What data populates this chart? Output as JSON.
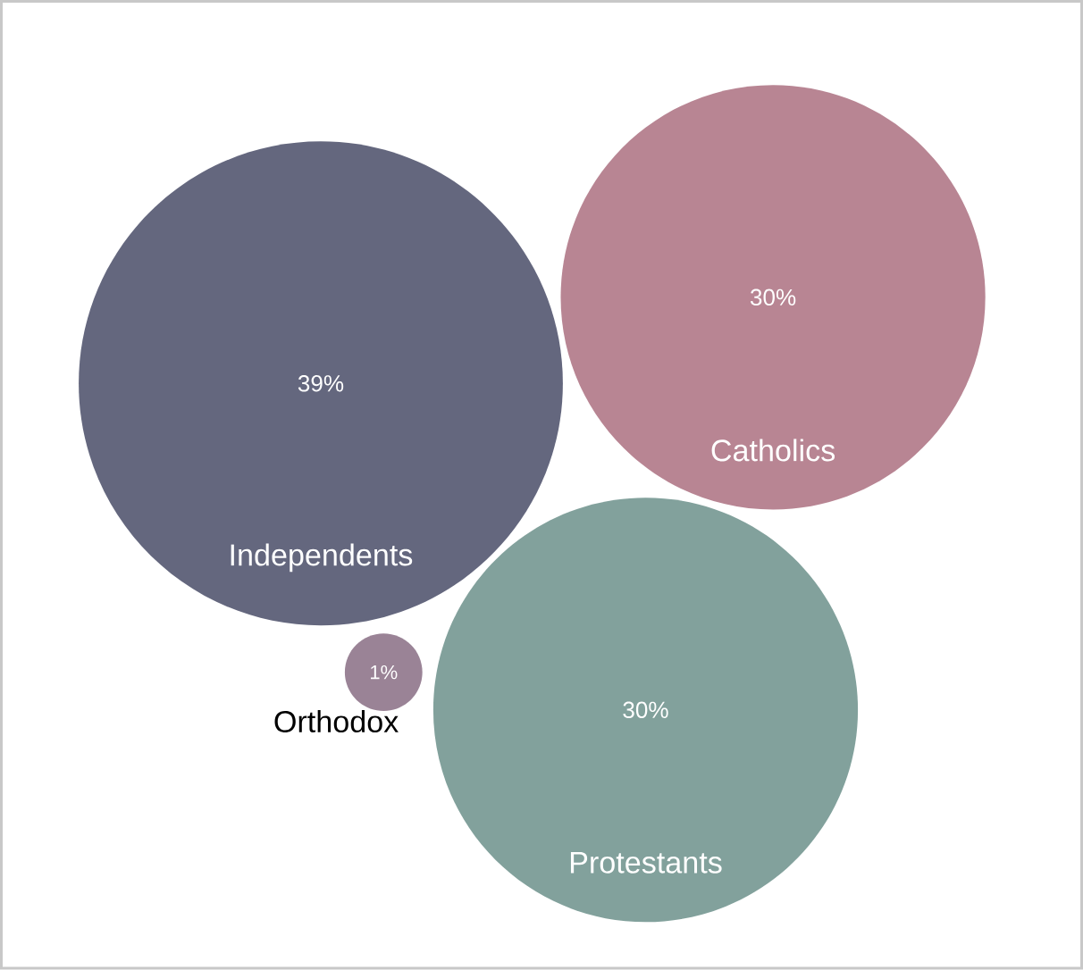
{
  "chart_data": {
    "type": "other",
    "categories": [
      "Independents",
      "Catholics",
      "Protestants",
      "Orthodox"
    ],
    "values": [
      39,
      30,
      30,
      1
    ],
    "value_labels": [
      "39%",
      "30%",
      "30%",
      "1%"
    ],
    "colors": [
      "#64677e",
      "#b88593",
      "#82a19c",
      "#9a8396"
    ]
  }
}
